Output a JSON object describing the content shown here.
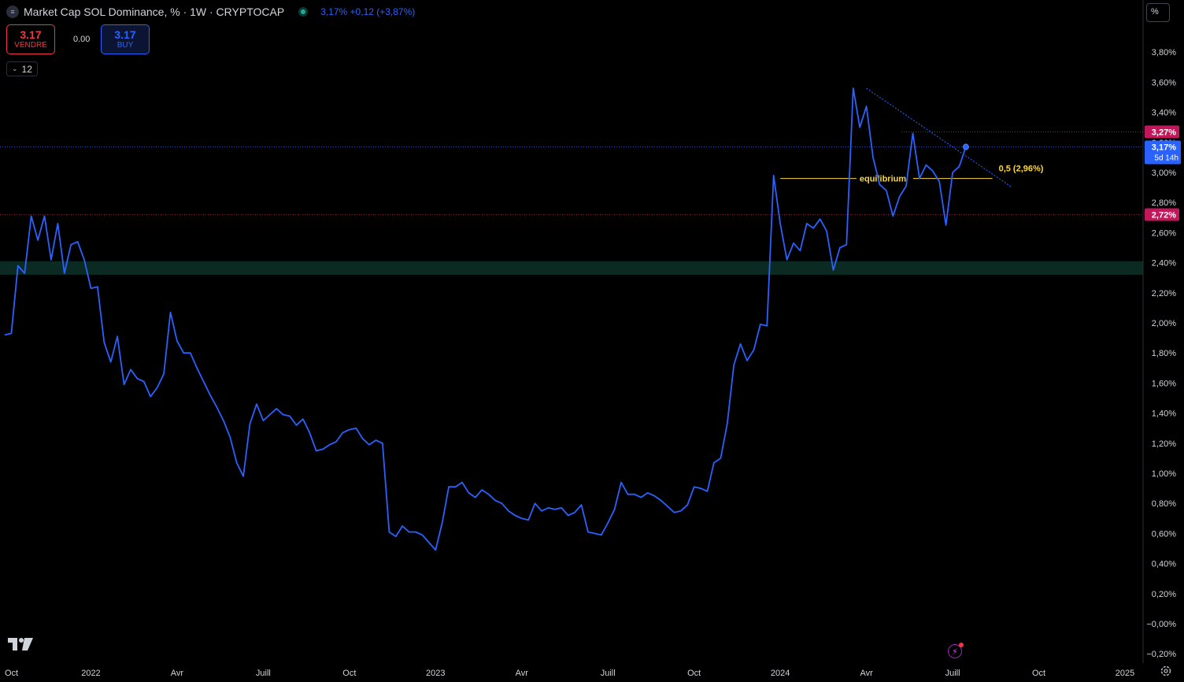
{
  "header": {
    "symbol_icon": "≡",
    "title": "Market Cap SOL Dominance, % · 1W · CRYPTOCAP",
    "price_info": "3,17%  +0,12 (+3,87%)",
    "status_icon": "market-status-dot-icon"
  },
  "trade": {
    "sell_price": "3.17",
    "sell_label": "VENDRE",
    "spread": "0.00",
    "buy_price": "3.17",
    "buy_label": "BUY"
  },
  "indicators_toggle": {
    "count": "12",
    "icon": "chevron-down-icon"
  },
  "scale_mode_label": "%",
  "colors": {
    "background": "#000000",
    "line": "#2962ff",
    "zone": "#0b2a22",
    "equilibrium": "#fdd835",
    "resistance_label": "#c2185b",
    "grid_text": "#d1d4dc"
  },
  "chart_data": {
    "type": "line",
    "title": "Market Cap SOL Dominance, % · 1W · CRYPTOCAP",
    "xlabel": "",
    "ylabel": "",
    "ylim": [
      -0.2,
      4.0
    ],
    "x_ticks": [
      {
        "label": "Oct",
        "week": 0
      },
      {
        "label": "2022",
        "week": 13
      },
      {
        "label": "Avr",
        "week": 26
      },
      {
        "label": "Juill",
        "week": 39
      },
      {
        "label": "Oct",
        "week": 52
      },
      {
        "label": "2023",
        "week": 65
      },
      {
        "label": "Avr",
        "week": 78
      },
      {
        "label": "Juill",
        "week": 91
      },
      {
        "label": "Oct",
        "week": 104
      },
      {
        "label": "2024",
        "week": 117
      },
      {
        "label": "Avr",
        "week": 130
      },
      {
        "label": "Juill",
        "week": 143
      },
      {
        "label": "Oct",
        "week": 156
      },
      {
        "label": "2025",
        "week": 169
      }
    ],
    "y_ticks": [
      "3,80%",
      "3,60%",
      "3,40%",
      "3,20%",
      "3,00%",
      "2,80%",
      "2,60%",
      "2,40%",
      "2,20%",
      "2,00%",
      "1,80%",
      "1,60%",
      "1,40%",
      "1,20%",
      "1,00%",
      "0,80%",
      "0,60%",
      "0,40%",
      "0,20%",
      "−0,00%",
      "−0,20%"
    ],
    "y_tick_values": [
      3.8,
      3.6,
      3.4,
      3.2,
      3.0,
      2.8,
      2.6,
      2.4,
      2.2,
      2.0,
      1.8,
      1.6,
      1.4,
      1.2,
      1.0,
      0.8,
      0.6,
      0.4,
      0.2,
      0.0,
      -0.2
    ],
    "series": [
      {
        "values": [
          1.92,
          1.93,
          2.38,
          2.33,
          2.71,
          2.55,
          2.71,
          2.42,
          2.66,
          2.33,
          2.52,
          2.54,
          2.42,
          2.23,
          2.24,
          1.87,
          1.74,
          1.91,
          1.59,
          1.69,
          1.63,
          1.61,
          1.51,
          1.57,
          1.66,
          2.07,
          1.88,
          1.8,
          1.8,
          1.7,
          1.61,
          1.52,
          1.44,
          1.35,
          1.24,
          1.07,
          0.98,
          1.33,
          1.46,
          1.35,
          1.39,
          1.43,
          1.39,
          1.38,
          1.32,
          1.36,
          1.27,
          1.15,
          1.16,
          1.19,
          1.21,
          1.27,
          1.29,
          1.3,
          1.23,
          1.19,
          1.22,
          1.2,
          0.61,
          0.58,
          0.65,
          0.61,
          0.61,
          0.59,
          0.54,
          0.49,
          0.67,
          0.91,
          0.91,
          0.94,
          0.87,
          0.84,
          0.89,
          0.86,
          0.82,
          0.8,
          0.75,
          0.72,
          0.7,
          0.69,
          0.8,
          0.75,
          0.77,
          0.76,
          0.77,
          0.72,
          0.74,
          0.79,
          0.61,
          0.6,
          0.59,
          0.67,
          0.76,
          0.94,
          0.86,
          0.86,
          0.84,
          0.87,
          0.85,
          0.82,
          0.78,
          0.74,
          0.75,
          0.79,
          0.91,
          0.9,
          0.88,
          1.07,
          1.1,
          1.33,
          1.72,
          1.86,
          1.75,
          1.82,
          1.99,
          1.98,
          2.98,
          2.66,
          2.42,
          2.53,
          2.48,
          2.66,
          2.63,
          2.69,
          2.61,
          2.35,
          2.5,
          2.52,
          3.56,
          3.3,
          3.44,
          3.1,
          2.92,
          2.88,
          2.71,
          2.84,
          2.91,
          3.26,
          2.96,
          3.05,
          3.01,
          2.94,
          2.65,
          3.0,
          3.04,
          3.17
        ]
      }
    ],
    "horizontal_levels": [
      {
        "value": 3.27,
        "label": "3,27%"
      },
      {
        "value": 2.72,
        "label": "2,72%"
      }
    ],
    "current_price": {
      "value": 3.17,
      "label": "3,17%",
      "countdown": "5d 14h"
    },
    "equilibrium": {
      "value": 2.96,
      "label": "equilibrium",
      "level_label": "0,5 (2,96%)",
      "from_week": 117,
      "to_week": 149
    },
    "zone": {
      "from": 2.32,
      "to": 2.41
    },
    "trendline": {
      "from_week": 130,
      "from_value": 3.56,
      "to_week": 152,
      "to_value": 2.9
    }
  }
}
